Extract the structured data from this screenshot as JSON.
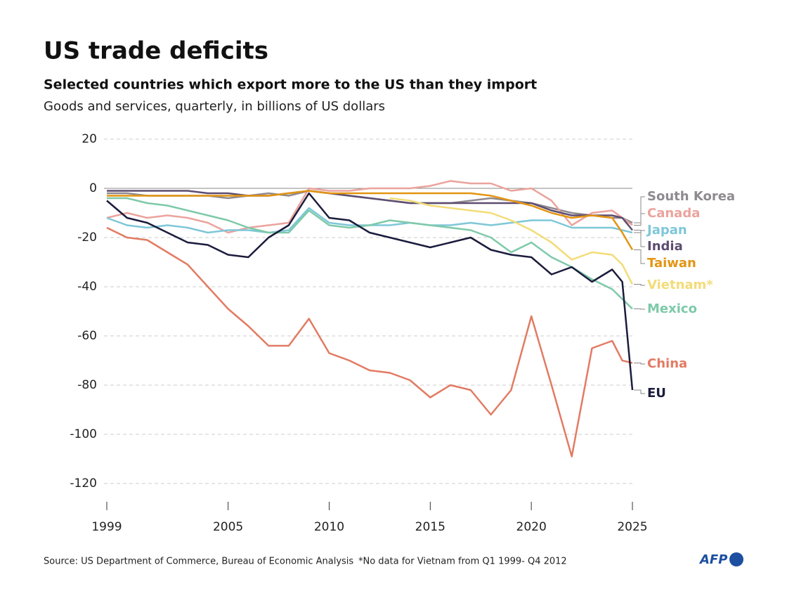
{
  "title": "US trade deficits",
  "subtitle": "Selected countries which export more to the US than they import",
  "note": "Goods and services, quarterly, in billions of US dollars",
  "source": "Source: US Department of  Commerce, Bureau of Economic Analysis",
  "footnote": "*No data for Vietnam from Q1 1999- Q4 2012",
  "logo": "AFP",
  "chart_data": {
    "type": "line",
    "x": [
      1999,
      2000,
      2001,
      2002,
      2003,
      2004,
      2005,
      2006,
      2007,
      2008,
      2009,
      2010,
      2011,
      2012,
      2013,
      2014,
      2015,
      2016,
      2017,
      2018,
      2019,
      2020,
      2021,
      2022,
      2023,
      2024,
      2024.5,
      2025
    ],
    "xlim": [
      1999,
      2025
    ],
    "xticks": [
      1999,
      2005,
      2010,
      2015,
      2020,
      2025
    ],
    "ylim": [
      -128,
      22
    ],
    "yticks": [
      20,
      0,
      -20,
      -40,
      -60,
      -80,
      -100,
      -120
    ],
    "grid": true,
    "series": [
      {
        "name": "South Korea",
        "color": "#8f8a90",
        "values": [
          -2,
          -2,
          -3,
          -3,
          -3,
          -3,
          -4,
          -3,
          -2,
          -3,
          -1,
          -2,
          -3,
          -4,
          -5,
          -6,
          -6,
          -6,
          -5,
          -4,
          -5,
          -6,
          -8,
          -10,
          -11,
          -12,
          -12,
          -14
        ]
      },
      {
        "name": "Canada",
        "color": "#eba39d",
        "values": [
          -12,
          -10,
          -12,
          -11,
          -12,
          -14,
          -18,
          -16,
          -15,
          -14,
          0,
          -1,
          -1,
          0,
          0,
          0,
          1,
          3,
          2,
          2,
          -1,
          0,
          -5,
          -15,
          -10,
          -9,
          -12,
          -15
        ]
      },
      {
        "name": "Japan",
        "color": "#7ec7d8",
        "values": [
          -12,
          -15,
          -16,
          -15,
          -16,
          -18,
          -17,
          -17,
          -18,
          -17,
          -8,
          -14,
          -15,
          -15,
          -15,
          -14,
          -15,
          -15,
          -14,
          -15,
          -14,
          -13,
          -13,
          -16,
          -16,
          -16,
          -17,
          -18
        ]
      },
      {
        "name": "India",
        "color": "#5d4d70",
        "values": [
          -1,
          -1,
          -1,
          -1,
          -1,
          -2,
          -2,
          -3,
          -3,
          -2,
          -1,
          -2,
          -3,
          -4,
          -5,
          -6,
          -6,
          -6,
          -6,
          -6,
          -6,
          -6,
          -9,
          -11,
          -11,
          -11,
          -12,
          -17
        ]
      },
      {
        "name": "Taiwan",
        "color": "#e39512",
        "values": [
          -3,
          -3,
          -3,
          -3,
          -3,
          -3,
          -3,
          -3,
          -3,
          -2,
          -1,
          -2,
          -2,
          -2,
          -2,
          -2,
          -2,
          -2,
          -2,
          -3,
          -5,
          -7,
          -10,
          -12,
          -11,
          -12,
          -18,
          -25
        ]
      },
      {
        "name": "Vietnam*",
        "color": "#f3dc78",
        "values": [
          null,
          null,
          null,
          null,
          null,
          null,
          null,
          null,
          null,
          null,
          null,
          null,
          null,
          null,
          -4,
          -5,
          -7,
          -8,
          -9,
          -10,
          -13,
          -17,
          -22,
          -29,
          -26,
          -27,
          -31,
          -39
        ]
      },
      {
        "name": "Mexico",
        "color": "#7ec9a9",
        "values": [
          -4,
          -4,
          -6,
          -7,
          -9,
          -11,
          -13,
          -16,
          -18,
          -18,
          -9,
          -15,
          -16,
          -15,
          -13,
          -14,
          -15,
          -16,
          -17,
          -20,
          -26,
          -22,
          -28,
          -32,
          -37,
          -41,
          -45,
          -49
        ]
      },
      {
        "name": "China",
        "color": "#e27b63",
        "values": [
          -16,
          -20,
          -21,
          -26,
          -31,
          -40,
          -49,
          -56,
          -64,
          -64,
          -53,
          -67,
          -70,
          -74,
          -75,
          -78,
          -85,
          -80,
          -82,
          -92,
          -82,
          -52,
          -80,
          -109,
          -65,
          -62,
          -70,
          -71
        ]
      },
      {
        "name": "EU",
        "color": "#1b1c3c",
        "values": [
          -5,
          -12,
          -14,
          -18,
          -22,
          -23,
          -27,
          -28,
          -20,
          -15,
          -2,
          -12,
          -13,
          -18,
          -20,
          -22,
          -24,
          -22,
          -20,
          -25,
          -27,
          -28,
          -35,
          -32,
          -38,
          -33,
          -38,
          -82
        ]
      }
    ]
  }
}
